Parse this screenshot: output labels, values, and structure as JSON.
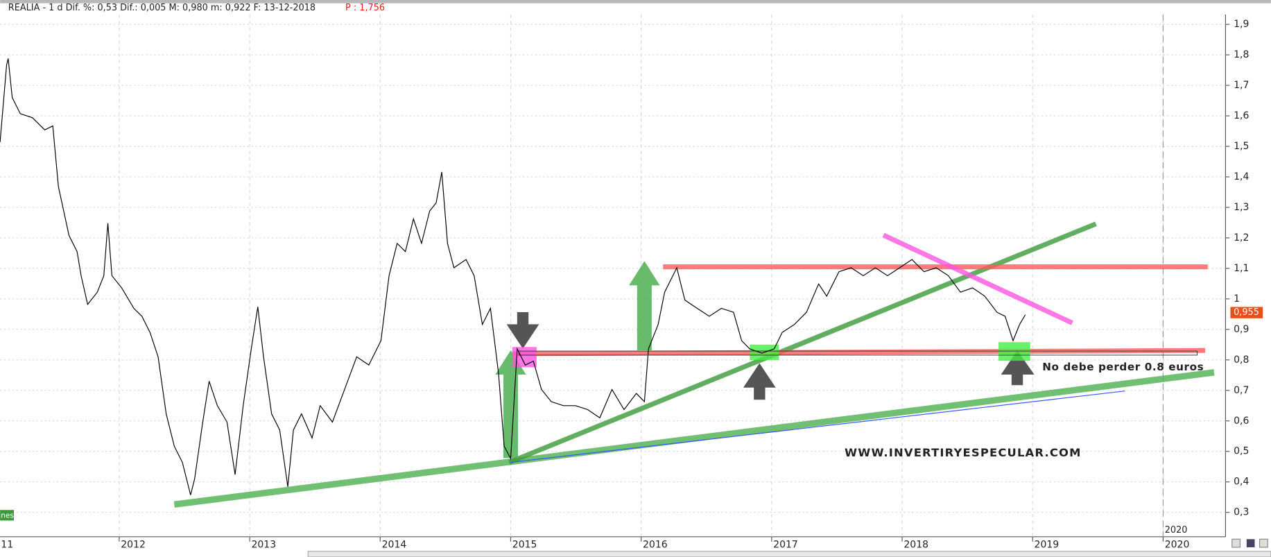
{
  "chart_data": {
    "type": "line",
    "header": "REALIA -  1 d Dif. %: 0,53 Dif.: 0,005 M: 0,980 m: 0,922 F: 13-12-2018",
    "header_price": "P : 1,756",
    "x": [
      2011.087,
      2011.137,
      2011.149,
      2011.18,
      2011.242,
      2011.335,
      2011.429,
      2011.491,
      2011.534,
      2011.615,
      2011.677,
      2011.708,
      2011.758,
      2011.832,
      2011.882,
      2011.913,
      2011.944,
      2012.019,
      2012.112,
      2012.174,
      2012.236,
      2012.298,
      2012.36,
      2012.422,
      2012.484,
      2012.547,
      2012.578,
      2012.64,
      2012.689,
      2012.752,
      2012.826,
      2012.888,
      2012.95,
      2013.012,
      2013.062,
      2013.106,
      2013.168,
      2013.23,
      2013.292,
      2013.335,
      2013.397,
      2013.478,
      2013.54,
      2013.634,
      2013.727,
      2013.82,
      2013.913,
      2014.006,
      2014.068,
      2014.13,
      2014.193,
      2014.255,
      2014.317,
      2014.379,
      2014.429,
      2014.472,
      2014.516,
      2014.565,
      2014.658,
      2014.72,
      2014.783,
      2014.845,
      2014.907,
      2014.95,
      2015.0,
      2015.05,
      2015.112,
      2015.174,
      2015.236,
      2015.311,
      2015.404,
      2015.497,
      2015.59,
      2015.683,
      2015.776,
      2015.869,
      2015.963,
      2016.025,
      2016.056,
      2016.13,
      2016.18,
      2016.273,
      2016.335,
      2016.429,
      2016.522,
      2016.615,
      2016.708,
      2016.77,
      2016.832,
      2016.925,
      2017.019,
      2017.081,
      2017.174,
      2017.267,
      2017.36,
      2017.422,
      2017.516,
      2017.609,
      2017.702,
      2017.795,
      2017.888,
      2017.981,
      2018.075,
      2018.168,
      2018.261,
      2018.354,
      2018.447,
      2018.54,
      2018.633,
      2018.727,
      2018.789,
      2018.85,
      2018.9,
      2018.944
    ],
    "series": [
      {
        "color": "#000000",
        "values": [
          1.514,
          1.767,
          1.788,
          1.66,
          1.607,
          1.594,
          1.554,
          1.567,
          1.368,
          1.208,
          1.155,
          1.076,
          0.982,
          1.022,
          1.076,
          1.248,
          1.076,
          1.036,
          0.969,
          0.943,
          0.89,
          0.81,
          0.623,
          0.517,
          0.464,
          0.357,
          0.41,
          0.596,
          0.73,
          0.65,
          0.596,
          0.424,
          0.65,
          0.836,
          0.974,
          0.81,
          0.623,
          0.57,
          0.384,
          0.57,
          0.623,
          0.544,
          0.65,
          0.596,
          0.703,
          0.81,
          0.783,
          0.863,
          1.076,
          1.182,
          1.155,
          1.262,
          1.182,
          1.288,
          1.315,
          1.416,
          1.182,
          1.102,
          1.129,
          1.076,
          0.916,
          0.969,
          0.756,
          0.517,
          0.477,
          0.836,
          0.783,
          0.796,
          0.703,
          0.663,
          0.65,
          0.65,
          0.637,
          0.61,
          0.703,
          0.637,
          0.69,
          0.663,
          0.836,
          0.916,
          1.022,
          1.102,
          0.996,
          0.969,
          0.943,
          0.969,
          0.956,
          0.863,
          0.836,
          0.822,
          0.836,
          0.89,
          0.916,
          0.956,
          1.049,
          1.009,
          1.089,
          1.102,
          1.076,
          1.102,
          1.076,
          1.102,
          1.129,
          1.089,
          1.102,
          1.076,
          1.022,
          1.036,
          1.009,
          0.956,
          0.943,
          0.863,
          0.916,
          0.948
        ]
      }
    ],
    "overlays": [
      {
        "color": "#4caf50",
        "x": [
          2012.422,
          2020.391
        ],
        "values": [
          0.326,
          0.759
        ]
      },
      {
        "color": "#3a9a3a",
        "x": [
          2014.988,
          2019.485
        ],
        "values": [
          0.464,
          1.246
        ]
      },
      {
        "color": "#ff5a5a",
        "x": [
          2016.168,
          2020.342
        ],
        "values": [
          1.105,
          1.105
        ]
      },
      {
        "color": "#ff5a5a",
        "x": [
          2015.012,
          2020.323
        ],
        "values": [
          0.82,
          0.831
        ]
      },
      {
        "color": "#ff55e0",
        "x": [
          2017.857,
          2019.304
        ],
        "values": [
          1.209,
          0.921
        ]
      },
      {
        "color": "#3355ff",
        "x": [
          2015.0,
          2019.708
        ],
        "values": [
          0.464,
          0.698
        ]
      }
    ],
    "last_value": {
      "value": 0.955,
      "label": "0,955"
    },
    "annotations": [
      "No debe perder 0.8 euros",
      "WWW.INVERTIRYESPECULAR.COM",
      "2020",
      "nes"
    ],
    "xlim": [
      2011.087,
      2020.466
    ],
    "xticks": [
      {
        "value": 2011,
        "label": "11"
      },
      2012,
      2013,
      2014,
      2015,
      2016,
      2017,
      2018,
      2019,
      2020
    ],
    "ylim": [
      0.2255,
      1.932
    ],
    "yticks": [
      {
        "value": 0.3,
        "label": "0,3"
      },
      {
        "value": 0.4,
        "label": "0,4"
      },
      {
        "value": 0.5,
        "label": "0,5"
      },
      {
        "value": 0.6,
        "label": "0,6"
      },
      {
        "value": 0.7,
        "label": "0,7"
      },
      {
        "value": 0.8,
        "label": "0,8"
      },
      {
        "value": 0.9,
        "label": "0,9"
      },
      1,
      {
        "value": 1.1,
        "label": "1,1"
      },
      {
        "value": 1.2,
        "label": "1,2"
      },
      {
        "value": 1.3,
        "label": "1,3"
      },
      {
        "value": 1.4,
        "label": "1,4"
      },
      {
        "value": 1.5,
        "label": "1,5"
      },
      {
        "value": 1.6,
        "label": "1,6"
      },
      {
        "value": 1.7,
        "label": "1,7"
      },
      {
        "value": 1.8,
        "label": "1,8"
      },
      {
        "value": 1.9,
        "label": "1,9"
      }
    ],
    "grid": true
  }
}
